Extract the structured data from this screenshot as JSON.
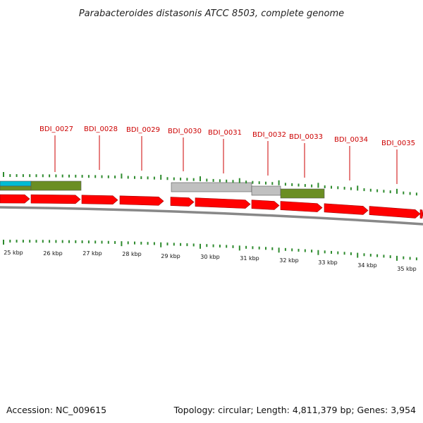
{
  "header": {
    "title": "Parabacteroides distasonis ATCC 8503, complete genome"
  },
  "footer": {
    "accession": "Accession: NC_009615",
    "summary": "Topology: circular; Length: 4,811,379 bp; Genes: 3,954"
  },
  "colors": {
    "gene_arrow": "#ff0000",
    "gene_label": "#cc0000",
    "tick": "#2e8b2e",
    "backbone": "#888888",
    "feature_olive": "#6b8e23",
    "feature_cyan": "#00bcd4",
    "feature_gray": "#c0c0c0"
  },
  "gene_labels": [
    "BDI_0027",
    "BDI_0028",
    "BDI_0029",
    "BDI_0030",
    "BDI_0031",
    "BDI_0032",
    "BDI_0033",
    "BDI_0034",
    "BDI_0035"
  ],
  "ruler_labels": [
    "25 kbp",
    "26 kbp",
    "27 kbp",
    "28 kbp",
    "29 kbp",
    "30 kbp",
    "31 kbp",
    "32 kbp",
    "33 kbp",
    "34 kbp",
    "35 kbp"
  ]
}
